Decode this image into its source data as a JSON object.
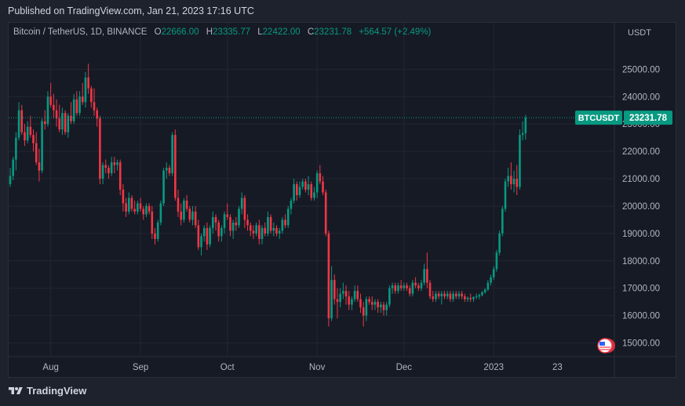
{
  "header": {
    "published": "Published on TradingView.com, Jan 21, 2023 17:16 UTC"
  },
  "legend": {
    "symbol": "Bitcoin / TetherUS, 1D, BINANCE",
    "o_label": "O",
    "o_value": "22666.00",
    "h_label": "H",
    "h_value": "23335.77",
    "l_label": "L",
    "l_value": "22422.00",
    "c_label": "C",
    "c_value": "23231.78",
    "change": "+564.57 (+2.49%)"
  },
  "price_label": {
    "symbol": "BTCUSDT",
    "price": "23231.78"
  },
  "footer": {
    "brand": "TradingView"
  },
  "colors": {
    "up": "#089981",
    "down": "#f23645",
    "bg": "#161a25",
    "grid": "#232632"
  },
  "chart_data": {
    "type": "candlestick",
    "title": "Bitcoin / TetherUS, 1D, BINANCE",
    "y_axis_unit": "USDT",
    "ylim": [
      14500,
      26700
    ],
    "y_ticks": [
      "25000.00",
      "24000.00",
      "23000.00",
      "22000.00",
      "21000.00",
      "20000.00",
      "19000.00",
      "18000.00",
      "17000.00",
      "16000.00",
      "15000.00"
    ],
    "x_ticks": [
      {
        "label": "Aug",
        "day": 14
      },
      {
        "label": "Sep",
        "day": 45
      },
      {
        "label": "Oct",
        "day": 75
      },
      {
        "label": "Nov",
        "day": 106
      },
      {
        "label": "Dec",
        "day": 136
      },
      {
        "label": "2023",
        "day": 167
      },
      {
        "label": "23",
        "day": 189
      }
    ],
    "candles": [
      [
        20800,
        21400,
        20700,
        21100
      ],
      [
        21100,
        21800,
        20950,
        21700
      ],
      [
        21700,
        22700,
        21300,
        22500
      ],
      [
        22500,
        23800,
        22400,
        23500
      ],
      [
        23500,
        23700,
        22600,
        22700
      ],
      [
        22700,
        23000,
        22200,
        22400
      ],
      [
        22400,
        23100,
        22300,
        22900
      ],
      [
        22900,
        23300,
        22500,
        22600
      ],
      [
        22600,
        22800,
        22000,
        22300
      ],
      [
        22300,
        22700,
        21500,
        21600
      ],
      [
        21600,
        22100,
        20900,
        21300
      ],
      [
        21300,
        23200,
        21200,
        23100
      ],
      [
        23100,
        23500,
        22800,
        23000
      ],
      [
        23000,
        24200,
        22900,
        24000
      ],
      [
        24000,
        24500,
        23600,
        23700
      ],
      [
        23700,
        24100,
        23200,
        23500
      ],
      [
        23500,
        23900,
        22900,
        23200
      ],
      [
        23200,
        23700,
        22700,
        22800
      ],
      [
        22800,
        23600,
        22600,
        23400
      ],
      [
        23400,
        23500,
        22600,
        22700
      ],
      [
        22700,
        23400,
        22500,
        23300
      ],
      [
        23300,
        23800,
        23000,
        23100
      ],
      [
        23100,
        24100,
        23000,
        23900
      ],
      [
        23900,
        24200,
        23300,
        23400
      ],
      [
        23400,
        24200,
        23300,
        24000
      ],
      [
        24000,
        24500,
        23700,
        23800
      ],
      [
        23800,
        24900,
        23600,
        24700
      ],
      [
        24700,
        25200,
        24100,
        24300
      ],
      [
        24300,
        24400,
        23600,
        23800
      ],
      [
        23800,
        24300,
        23300,
        23500
      ],
      [
        23500,
        23600,
        22900,
        23200
      ],
      [
        23200,
        23300,
        20800,
        21000
      ],
      [
        21000,
        21600,
        20800,
        21500
      ],
      [
        21500,
        21700,
        21200,
        21400
      ],
      [
        21400,
        21500,
        21000,
        21200
      ],
      [
        21200,
        21800,
        21100,
        21600
      ],
      [
        21600,
        21800,
        21200,
        21500
      ],
      [
        21500,
        21700,
        21300,
        21600
      ],
      [
        21600,
        21700,
        20400,
        20600
      ],
      [
        20600,
        20800,
        19800,
        20100
      ],
      [
        20100,
        20300,
        19600,
        19800
      ],
      [
        19800,
        20500,
        19700,
        20300
      ],
      [
        20300,
        20400,
        19800,
        19900
      ],
      [
        19900,
        20200,
        19700,
        19800
      ],
      [
        19800,
        20200,
        19700,
        20100
      ],
      [
        20100,
        20300,
        19800,
        19900
      ],
      [
        19900,
        20000,
        19500,
        19700
      ],
      [
        19700,
        20100,
        19600,
        20000
      ],
      [
        20000,
        20100,
        19700,
        19800
      ],
      [
        19800,
        20000,
        18800,
        19000
      ],
      [
        19000,
        19200,
        18600,
        18800
      ],
      [
        18800,
        19500,
        18700,
        19400
      ],
      [
        19400,
        20200,
        19300,
        20100
      ],
      [
        20100,
        21400,
        20000,
        21300
      ],
      [
        21300,
        21600,
        21000,
        21400
      ],
      [
        21400,
        21500,
        21100,
        21200
      ],
      [
        21200,
        22700,
        21100,
        22600
      ],
      [
        22600,
        22800,
        20200,
        20300
      ],
      [
        20300,
        20600,
        19600,
        19800
      ],
      [
        19800,
        20100,
        19300,
        19500
      ],
      [
        19500,
        20300,
        19400,
        20200
      ],
      [
        20200,
        20400,
        19800,
        19900
      ],
      [
        19900,
        20000,
        19400,
        19500
      ],
      [
        19500,
        20000,
        19300,
        19800
      ],
      [
        19800,
        20000,
        19200,
        19300
      ],
      [
        19300,
        19500,
        18400,
        18500
      ],
      [
        18500,
        19000,
        18200,
        18900
      ],
      [
        18900,
        19300,
        18700,
        19200
      ],
      [
        19200,
        19400,
        18400,
        18600
      ],
      [
        18600,
        19300,
        18500,
        19200
      ],
      [
        19200,
        19800,
        19000,
        19600
      ],
      [
        19600,
        19700,
        19100,
        19400
      ],
      [
        19400,
        19500,
        18700,
        18900
      ],
      [
        18900,
        19300,
        18700,
        19200
      ],
      [
        19200,
        19800,
        19000,
        19700
      ],
      [
        19700,
        20100,
        19500,
        19600
      ],
      [
        19600,
        19700,
        18900,
        19100
      ],
      [
        19100,
        19500,
        18800,
        19400
      ],
      [
        19400,
        19600,
        19100,
        19300
      ],
      [
        19300,
        20000,
        19200,
        19900
      ],
      [
        19900,
        20500,
        19700,
        20300
      ],
      [
        20300,
        20400,
        19200,
        19500
      ],
      [
        19500,
        19700,
        19100,
        19300
      ],
      [
        19300,
        19400,
        18900,
        19100
      ],
      [
        19100,
        19300,
        18800,
        19000
      ],
      [
        19000,
        19400,
        18900,
        19300
      ],
      [
        19300,
        19500,
        18600,
        18800
      ],
      [
        18800,
        19300,
        18600,
        19200
      ],
      [
        19200,
        19400,
        18900,
        19000
      ],
      [
        19000,
        19800,
        18900,
        19600
      ],
      [
        19600,
        19700,
        19000,
        19100
      ],
      [
        19100,
        19400,
        18900,
        19200
      ],
      [
        19200,
        19300,
        18900,
        19000
      ],
      [
        19000,
        19200,
        18800,
        19100
      ],
      [
        19100,
        19600,
        19000,
        19500
      ],
      [
        19500,
        19700,
        19200,
        19300
      ],
      [
        19300,
        20000,
        19200,
        19900
      ],
      [
        19900,
        20300,
        19700,
        20200
      ],
      [
        20200,
        21000,
        20100,
        20800
      ],
      [
        20800,
        20900,
        20200,
        20400
      ],
      [
        20400,
        20900,
        20300,
        20700
      ],
      [
        20700,
        21000,
        20600,
        20900
      ],
      [
        20900,
        21000,
        20500,
        20600
      ],
      [
        20600,
        21100,
        20400,
        20800
      ],
      [
        20800,
        20900,
        20200,
        20300
      ],
      [
        20300,
        20700,
        20200,
        20500
      ],
      [
        20500,
        21300,
        20300,
        21200
      ],
      [
        21200,
        21500,
        20800,
        20900
      ],
      [
        20900,
        21100,
        20400,
        20500
      ],
      [
        20500,
        20600,
        18900,
        19000
      ],
      [
        19000,
        19100,
        15600,
        15900
      ],
      [
        15900,
        17800,
        15800,
        17300
      ],
      [
        17300,
        17500,
        16400,
        16600
      ],
      [
        16600,
        17000,
        15900,
        16500
      ],
      [
        16500,
        17000,
        16300,
        16800
      ],
      [
        16800,
        17200,
        16600,
        16900
      ],
      [
        16900,
        17100,
        16400,
        16700
      ],
      [
        16700,
        16900,
        16200,
        16400
      ],
      [
        16400,
        16700,
        16200,
        16600
      ],
      [
        16600,
        17100,
        16500,
        16900
      ],
      [
        16900,
        17100,
        16500,
        16600
      ],
      [
        16600,
        16800,
        16100,
        16300
      ],
      [
        16300,
        16500,
        15600,
        16000
      ],
      [
        16000,
        16700,
        15800,
        16600
      ],
      [
        16600,
        16700,
        16400,
        16500
      ],
      [
        16500,
        16700,
        16200,
        16400
      ],
      [
        16400,
        16600,
        16200,
        16500
      ],
      [
        16500,
        16600,
        16100,
        16300
      ],
      [
        16300,
        16500,
        16100,
        16400
      ],
      [
        16400,
        16500,
        16000,
        16200
      ],
      [
        16200,
        16500,
        16000,
        16400
      ],
      [
        16400,
        17100,
        16300,
        17000
      ],
      [
        17000,
        17200,
        16800,
        17100
      ],
      [
        17100,
        17200,
        16800,
        16900
      ],
      [
        16900,
        17200,
        16800,
        17100
      ],
      [
        17100,
        17300,
        16900,
        17000
      ],
      [
        17000,
        17200,
        16900,
        17100
      ],
      [
        17100,
        17200,
        16900,
        17000
      ],
      [
        17000,
        17100,
        16700,
        16800
      ],
      [
        16800,
        17300,
        16700,
        17200
      ],
      [
        17200,
        17400,
        17000,
        17100
      ],
      [
        17100,
        17200,
        16900,
        17000
      ],
      [
        17000,
        17300,
        16900,
        17200
      ],
      [
        17200,
        17900,
        17100,
        17700
      ],
      [
        17700,
        18300,
        17000,
        17200
      ],
      [
        17200,
        17300,
        16600,
        16700
      ],
      [
        16700,
        16900,
        16500,
        16600
      ],
      [
        16600,
        16900,
        16500,
        16800
      ],
      [
        16800,
        16900,
        16600,
        16700
      ],
      [
        16700,
        16900,
        16400,
        16800
      ],
      [
        16800,
        16900,
        16600,
        16700
      ],
      [
        16700,
        16900,
        16600,
        16800
      ],
      [
        16800,
        16900,
        16500,
        16600
      ],
      [
        16600,
        16900,
        16500,
        16800
      ],
      [
        16800,
        16900,
        16600,
        16700
      ],
      [
        16700,
        16900,
        16600,
        16800
      ],
      [
        16800,
        16900,
        16600,
        16700
      ],
      [
        16700,
        16800,
        16500,
        16600
      ],
      [
        16600,
        16700,
        16500,
        16650
      ],
      [
        16650,
        16800,
        16500,
        16600
      ],
      [
        16600,
        16700,
        16500,
        16680
      ],
      [
        16680,
        16800,
        16600,
        16700
      ],
      [
        16700,
        16800,
        16600,
        16750
      ],
      [
        16750,
        16900,
        16700,
        16850
      ],
      [
        16850,
        17000,
        16800,
        16950
      ],
      [
        16950,
        17300,
        16900,
        17200
      ],
      [
        17200,
        17500,
        17100,
        17400
      ],
      [
        17400,
        17800,
        17300,
        17700
      ],
      [
        17700,
        18400,
        17600,
        18300
      ],
      [
        18300,
        19100,
        18200,
        19000
      ],
      [
        19000,
        20000,
        18900,
        19900
      ],
      [
        19900,
        21000,
        19800,
        20900
      ],
      [
        20900,
        21400,
        20700,
        21100
      ],
      [
        21100,
        21600,
        20600,
        20800
      ],
      [
        20800,
        21300,
        20500,
        21000
      ],
      [
        21000,
        21500,
        20400,
        20700
      ],
      [
        20700,
        22800,
        20600,
        22600
      ],
      [
        22600,
        23100,
        22400,
        22666
      ],
      [
        22666,
        23335.77,
        22422,
        23231.78
      ]
    ]
  }
}
